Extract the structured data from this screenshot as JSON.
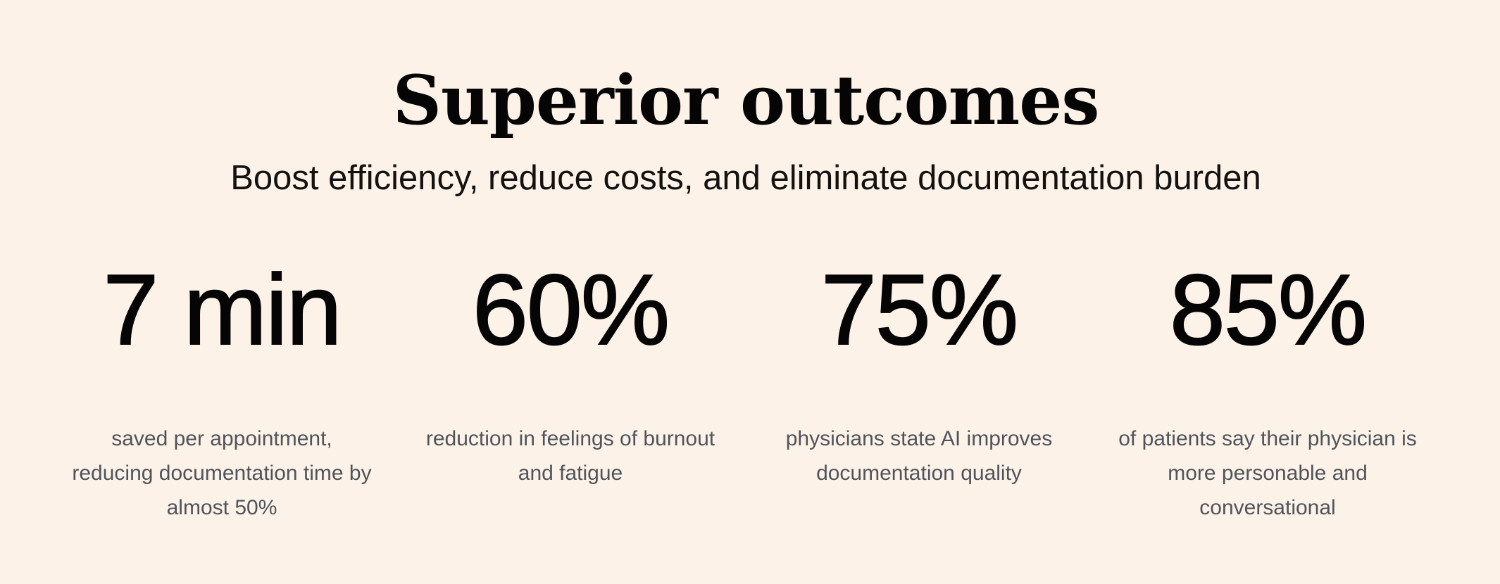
{
  "headline": "Superior outcomes",
  "subheadline": "Boost efficiency, reduce costs, and eliminate documentation burden",
  "stats": [
    {
      "value": "7 min",
      "description": "saved per appointment, reducing documentation time by almost 50%"
    },
    {
      "value": "60%",
      "description": "reduction in feelings of burnout and fatigue"
    },
    {
      "value": "75%",
      "description": "physicians state AI improves documentation quality"
    },
    {
      "value": "85%",
      "description": "of patients say their physician is more personable and conversational"
    }
  ],
  "colors": {
    "background": "#fdf2e7",
    "heading": "#050505",
    "description": "#4f545c"
  }
}
